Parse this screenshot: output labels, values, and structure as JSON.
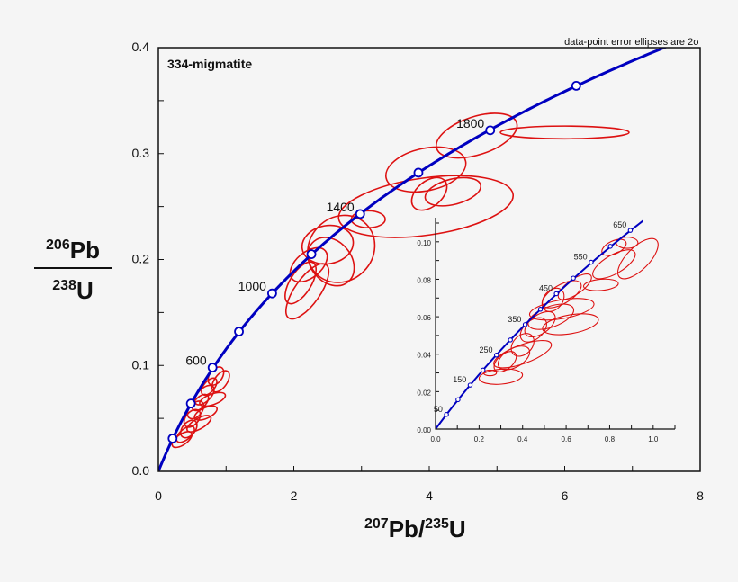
{
  "chart_data": {
    "type": "scatter",
    "title": "334-migmatite",
    "annotation": "data-point error ellipses are 2σ",
    "xlabel": {
      "iso1": "207",
      "el1": "Pb",
      "slash": "/",
      "iso2": "235",
      "el2": "U"
    },
    "ylabel": {
      "iso1": "206",
      "el1": "Pb",
      "iso2": "238",
      "el2": "U"
    },
    "main": {
      "xlim": [
        0,
        8
      ],
      "ylim": [
        0,
        0.4
      ],
      "xticks": [
        "0",
        "2",
        "4",
        "6",
        "8"
      ],
      "yticks": [
        "0.0",
        "0.1",
        "0.2",
        "0.3",
        "0.4"
      ],
      "concordia_ages_labeled": [
        {
          "label": "600",
          "x": 0.8,
          "y": 0.098
        },
        {
          "label": "1000",
          "x": 1.68,
          "y": 0.168
        },
        {
          "label": "1400",
          "x": 2.98,
          "y": 0.243
        },
        {
          "label": "1800",
          "x": 4.9,
          "y": 0.322
        }
      ],
      "concordia_markers": [
        {
          "x": 0.21,
          "y": 0.031
        },
        {
          "x": 0.48,
          "y": 0.064
        },
        {
          "x": 0.8,
          "y": 0.098
        },
        {
          "x": 1.19,
          "y": 0.132
        },
        {
          "x": 1.68,
          "y": 0.168
        },
        {
          "x": 2.26,
          "y": 0.205
        },
        {
          "x": 2.98,
          "y": 0.243
        },
        {
          "x": 3.84,
          "y": 0.282
        },
        {
          "x": 4.9,
          "y": 0.322
        },
        {
          "x": 6.17,
          "y": 0.364
        }
      ],
      "ellipses": [
        {
          "cx": 6.0,
          "cy": 0.32,
          "rx": 0.95,
          "ry": 0.006,
          "rot": 0
        },
        {
          "cx": 4.7,
          "cy": 0.317,
          "rx": 0.62,
          "ry": 0.018,
          "rot": -18
        },
        {
          "cx": 3.95,
          "cy": 0.285,
          "rx": 0.6,
          "ry": 0.02,
          "rot": -12
        },
        {
          "cx": 3.95,
          "cy": 0.25,
          "rx": 1.3,
          "ry": 0.027,
          "rot": -8
        },
        {
          "cx": 4.0,
          "cy": 0.262,
          "rx": 0.3,
          "ry": 0.012,
          "rot": -40
        },
        {
          "cx": 4.35,
          "cy": 0.264,
          "rx": 0.42,
          "ry": 0.012,
          "rot": -14
        },
        {
          "cx": 3.1,
          "cy": 0.238,
          "rx": 0.25,
          "ry": 0.008,
          "rot": 0
        },
        {
          "cx": 2.5,
          "cy": 0.214,
          "rx": 0.38,
          "ry": 0.018,
          "rot": -10
        },
        {
          "cx": 2.7,
          "cy": 0.21,
          "rx": 0.52,
          "ry": 0.03,
          "rot": -45
        },
        {
          "cx": 2.55,
          "cy": 0.198,
          "rx": 0.3,
          "ry": 0.025,
          "rot": -40
        },
        {
          "cx": 2.22,
          "cy": 0.195,
          "rx": 0.32,
          "ry": 0.012,
          "rot": -40
        },
        {
          "cx": 2.2,
          "cy": 0.17,
          "rx": 0.48,
          "ry": 0.012,
          "rot": -55
        },
        {
          "cx": 2.1,
          "cy": 0.178,
          "rx": 0.35,
          "ry": 0.01,
          "rot": -58
        },
        {
          "cx": 0.85,
          "cy": 0.09,
          "rx": 0.15,
          "ry": 0.006,
          "rot": -55
        },
        {
          "cx": 0.92,
          "cy": 0.085,
          "rx": 0.18,
          "ry": 0.006,
          "rot": -55
        },
        {
          "cx": 0.75,
          "cy": 0.08,
          "rx": 0.15,
          "ry": 0.005,
          "rot": -50
        },
        {
          "cx": 0.68,
          "cy": 0.072,
          "rx": 0.18,
          "ry": 0.006,
          "rot": -45
        },
        {
          "cx": 0.62,
          "cy": 0.065,
          "rx": 0.15,
          "ry": 0.005,
          "rot": -45
        },
        {
          "cx": 0.8,
          "cy": 0.068,
          "rx": 0.2,
          "ry": 0.005,
          "rot": -20
        },
        {
          "cx": 0.55,
          "cy": 0.058,
          "rx": 0.15,
          "ry": 0.006,
          "rot": -50
        },
        {
          "cx": 0.7,
          "cy": 0.055,
          "rx": 0.18,
          "ry": 0.005,
          "rot": -25
        },
        {
          "cx": 0.5,
          "cy": 0.05,
          "rx": 0.15,
          "ry": 0.006,
          "rot": -50
        },
        {
          "cx": 0.6,
          "cy": 0.045,
          "rx": 0.2,
          "ry": 0.005,
          "rot": -30
        },
        {
          "cx": 0.45,
          "cy": 0.04,
          "rx": 0.15,
          "ry": 0.006,
          "rot": -50
        },
        {
          "cx": 0.4,
          "cy": 0.035,
          "rx": 0.16,
          "ry": 0.005,
          "rot": -40
        },
        {
          "cx": 0.35,
          "cy": 0.03,
          "rx": 0.17,
          "ry": 0.005,
          "rot": -35
        }
      ]
    },
    "inset": {
      "xlim": [
        0,
        1.1
      ],
      "ylim": [
        0,
        0.11
      ],
      "xticks": [
        "0.0",
        "0.2",
        "0.4",
        "0.6",
        "0.8",
        "1.0"
      ],
      "yticks": [
        "0.00",
        "0.02",
        "0.04",
        "0.06",
        "0.08",
        "0.10"
      ],
      "concordia_ages_labeled": [
        {
          "label": "50",
          "x": 0.05,
          "y": 0.0078
        },
        {
          "label": "150",
          "x": 0.159,
          "y": 0.0235
        },
        {
          "label": "250",
          "x": 0.28,
          "y": 0.0395
        },
        {
          "label": "350",
          "x": 0.412,
          "y": 0.0558
        },
        {
          "label": "450",
          "x": 0.555,
          "y": 0.0723
        },
        {
          "label": "550",
          "x": 0.715,
          "y": 0.0891
        },
        {
          "label": "650",
          "x": 0.895,
          "y": 0.1061
        }
      ],
      "concordia_markers": [
        {
          "x": 0.05,
          "y": 0.0078
        },
        {
          "x": 0.103,
          "y": 0.0157
        },
        {
          "x": 0.159,
          "y": 0.0235
        },
        {
          "x": 0.218,
          "y": 0.0315
        },
        {
          "x": 0.28,
          "y": 0.0395
        },
        {
          "x": 0.344,
          "y": 0.0476
        },
        {
          "x": 0.412,
          "y": 0.0558
        },
        {
          "x": 0.482,
          "y": 0.064
        },
        {
          "x": 0.555,
          "y": 0.0723
        },
        {
          "x": 0.633,
          "y": 0.0806
        },
        {
          "x": 0.715,
          "y": 0.0891
        },
        {
          "x": 0.803,
          "y": 0.0976
        },
        {
          "x": 0.895,
          "y": 0.1061
        }
      ],
      "ellipses": [
        {
          "cx": 0.82,
          "cy": 0.097,
          "rx": 0.06,
          "ry": 0.0035,
          "rot": -25
        },
        {
          "cx": 0.88,
          "cy": 0.0995,
          "rx": 0.05,
          "ry": 0.003,
          "rot": 0
        },
        {
          "cx": 0.93,
          "cy": 0.091,
          "rx": 0.12,
          "ry": 0.006,
          "rot": -45
        },
        {
          "cx": 0.82,
          "cy": 0.088,
          "rx": 0.11,
          "ry": 0.005,
          "rot": -30
        },
        {
          "cx": 0.76,
          "cy": 0.077,
          "rx": 0.08,
          "ry": 0.003,
          "rot": -5
        },
        {
          "cx": 0.64,
          "cy": 0.076,
          "rx": 0.09,
          "ry": 0.004,
          "rot": -35
        },
        {
          "cx": 0.58,
          "cy": 0.072,
          "rx": 0.1,
          "ry": 0.005,
          "rot": -30
        },
        {
          "cx": 0.54,
          "cy": 0.069,
          "rx": 0.06,
          "ry": 0.005,
          "rot": -50
        },
        {
          "cx": 0.58,
          "cy": 0.064,
          "rx": 0.15,
          "ry": 0.005,
          "rot": -10
        },
        {
          "cx": 0.62,
          "cy": 0.056,
          "rx": 0.13,
          "ry": 0.005,
          "rot": -10
        },
        {
          "cx": 0.53,
          "cy": 0.06,
          "rx": 0.11,
          "ry": 0.0055,
          "rot": -20
        },
        {
          "cx": 0.48,
          "cy": 0.056,
          "rx": 0.08,
          "ry": 0.005,
          "rot": -35
        },
        {
          "cx": 0.45,
          "cy": 0.053,
          "rx": 0.07,
          "ry": 0.005,
          "rot": -40
        },
        {
          "cx": 0.4,
          "cy": 0.045,
          "rx": 0.06,
          "ry": 0.005,
          "rot": -45
        },
        {
          "cx": 0.4,
          "cy": 0.04,
          "rx": 0.14,
          "ry": 0.005,
          "rot": -20
        },
        {
          "cx": 0.36,
          "cy": 0.038,
          "rx": 0.08,
          "ry": 0.005,
          "rot": -30
        },
        {
          "cx": 0.32,
          "cy": 0.036,
          "rx": 0.06,
          "ry": 0.004,
          "rot": -40
        },
        {
          "cx": 0.3,
          "cy": 0.028,
          "rx": 0.1,
          "ry": 0.004,
          "rot": -5
        },
        {
          "cx": 0.25,
          "cy": 0.03,
          "rx": 0.03,
          "ry": 0.0015,
          "rot": 0
        }
      ]
    },
    "colors": {
      "concordia": "#0000c0",
      "ellipse": "#dd1111",
      "axis": "#111111",
      "background": "#f5f5f5"
    }
  }
}
